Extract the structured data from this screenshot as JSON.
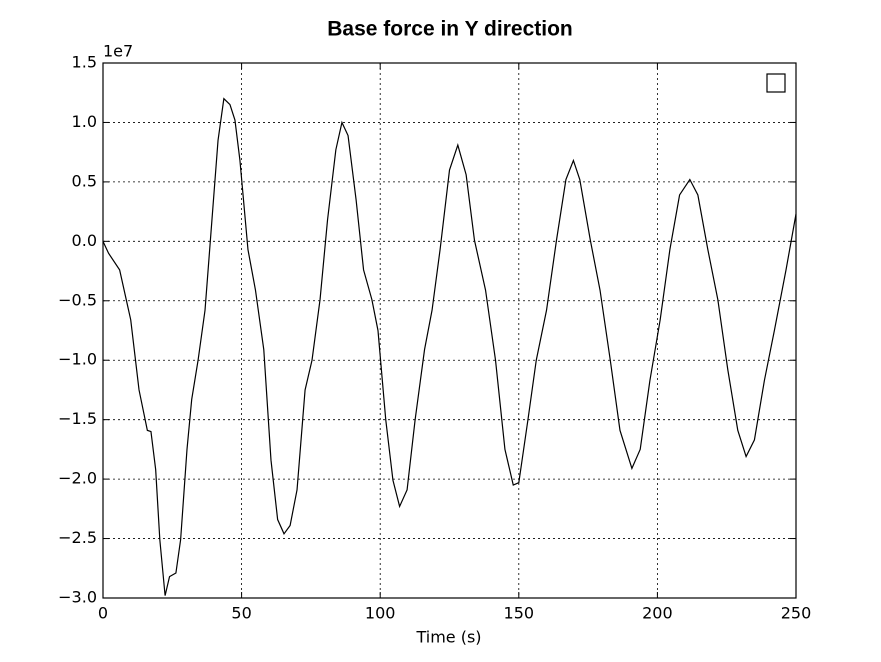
{
  "chart_data": {
    "type": "line",
    "title": "Base force in Y direction",
    "xlabel": "Time (s)",
    "y_offset_label": "1e7",
    "x": [
      0,
      2,
      6,
      10,
      13,
      16,
      17.3,
      19,
      20.5,
      22.4,
      24,
      26.3,
      28,
      30.3,
      32,
      34.3,
      36.8,
      39.3,
      41.5,
      43.6,
      45.8,
      47.6,
      49.4,
      52.3,
      55,
      58,
      60.6,
      63,
      65.3,
      67.5,
      70,
      72.9,
      75.4,
      78.3,
      81,
      84,
      86.2,
      88.4,
      91.3,
      94,
      97,
      99.2,
      102,
      104.6,
      107,
      109.7,
      112.6,
      116,
      118.7,
      121.6,
      125,
      128,
      131,
      134,
      138,
      141.6,
      145,
      148,
      150,
      153.3,
      156.3,
      160,
      163.6,
      167,
      169.7,
      172,
      175.8,
      179.3,
      183,
      186.5,
      190.8,
      193.8,
      197.3,
      201,
      204.5,
      208,
      211.7,
      214.6,
      218.2,
      221.8,
      225.4,
      229,
      232,
      235,
      238.6,
      242.2,
      246.4,
      250
    ],
    "series": [
      {
        "color": "#000000",
        "values": [
          0,
          -0.1,
          -0.24,
          -0.66,
          -1.25,
          -1.59,
          -1.6,
          -1.92,
          -2.51,
          -2.98,
          -2.82,
          -2.79,
          -2.51,
          -1.75,
          -1.33,
          -1,
          -0.58,
          0.18,
          0.85,
          1.2,
          1.15,
          1.02,
          0.68,
          -0.07,
          -0.41,
          -0.91,
          -1.84,
          -2.34,
          -2.46,
          -2.39,
          -2.09,
          -1.25,
          -1,
          -0.49,
          0.18,
          0.77,
          1,
          0.89,
          0.35,
          -0.24,
          -0.49,
          -0.75,
          -1.5,
          -2.01,
          -2.23,
          -2.09,
          -1.5,
          -0.91,
          -0.58,
          -0.07,
          0.6,
          0.81,
          0.56,
          0.01,
          -0.41,
          -1,
          -1.75,
          -2.05,
          -2.03,
          -1.5,
          -1,
          -0.58,
          0.01,
          0.52,
          0.68,
          0.52,
          0.01,
          -0.41,
          -1,
          -1.59,
          -1.91,
          -1.75,
          -1.17,
          -0.66,
          -0.07,
          0.39,
          0.52,
          0.39,
          -0.07,
          -0.49,
          -1.08,
          -1.59,
          -1.81,
          -1.67,
          -1.17,
          -0.75,
          -0.24,
          0.23
        ]
      }
    ],
    "xlim": [
      0,
      250
    ],
    "xticks": [
      0,
      50,
      100,
      150,
      200,
      250
    ],
    "ylim": [
      -3,
      1.5
    ],
    "yticks": [
      {
        "value": -3,
        "label": "−3.0"
      },
      {
        "value": -2.5,
        "label": "−2.5"
      },
      {
        "value": -2,
        "label": "−2.0"
      },
      {
        "value": -1.5,
        "label": "−1.5"
      },
      {
        "value": -1,
        "label": "−1.0"
      },
      {
        "value": -0.5,
        "label": "−0.5"
      },
      {
        "value": 0,
        "label": "0.0"
      },
      {
        "value": 0.5,
        "label": "0.5"
      },
      {
        "value": 1,
        "label": "1.0"
      },
      1.5
    ],
    "grid": true,
    "legend": "upper right"
  }
}
